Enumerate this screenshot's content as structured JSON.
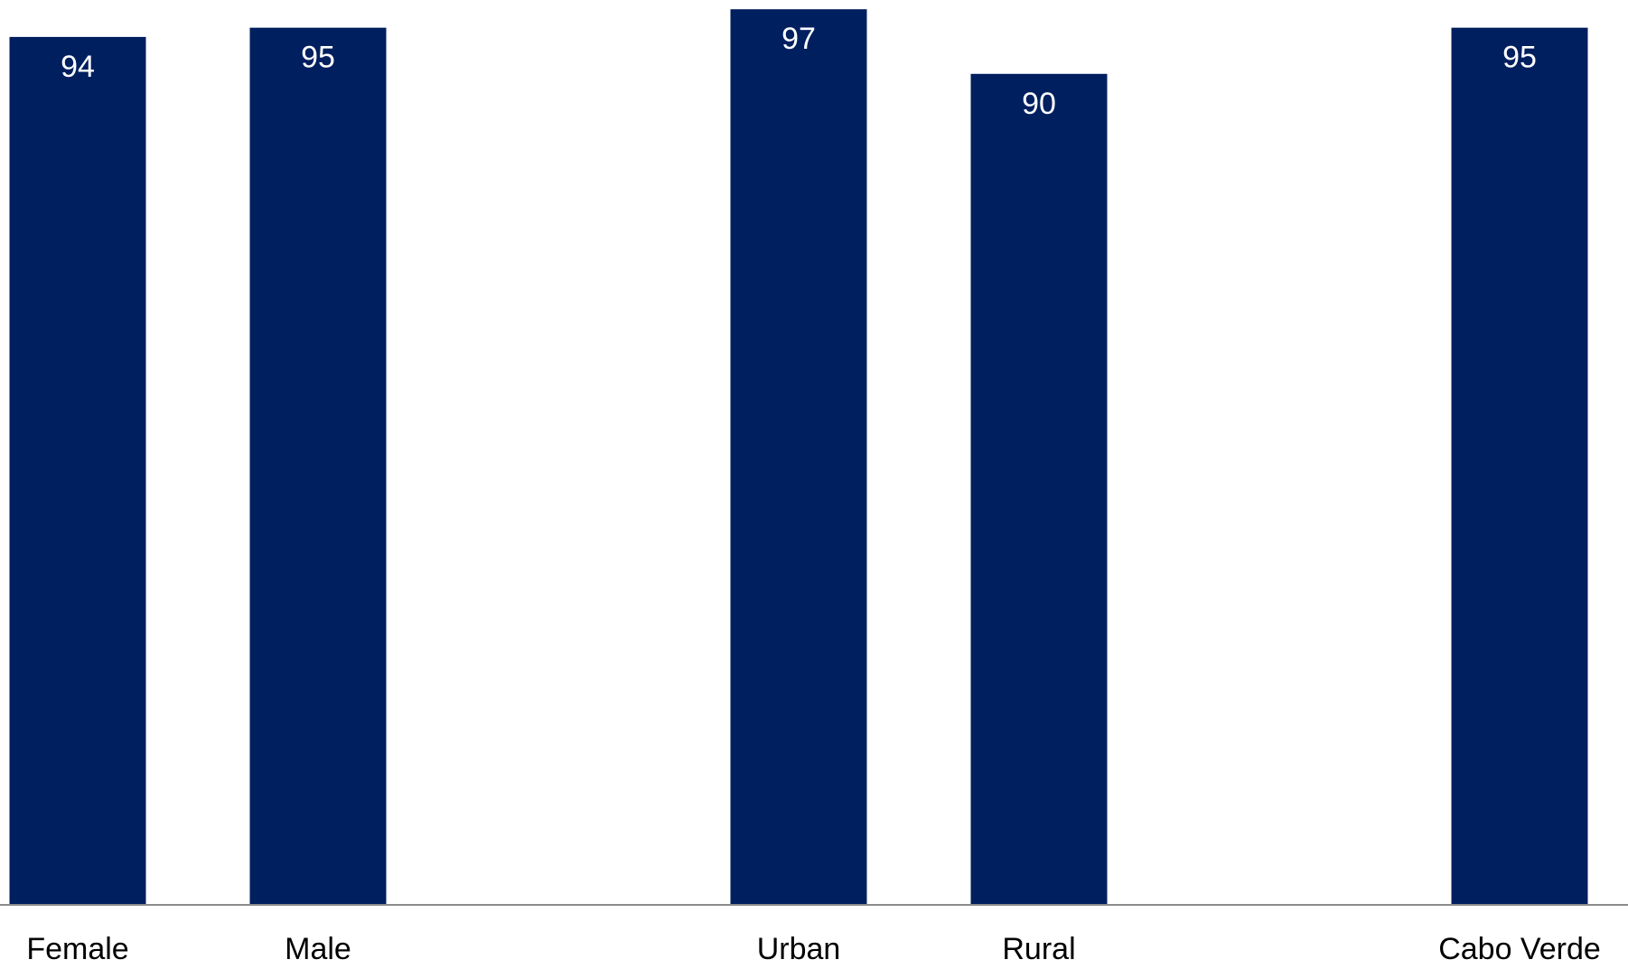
{
  "chart_data": {
    "type": "bar",
    "categories": [
      "Female",
      "Male",
      "",
      "Urban",
      "Rural",
      "",
      "Cabo Verde"
    ],
    "values": [
      94,
      95,
      null,
      97,
      90,
      null,
      95
    ],
    "data_labels": [
      "94",
      "95",
      "",
      "97",
      "90",
      "",
      "95"
    ],
    "title": "",
    "xlabel": "",
    "ylabel": "",
    "ylim": [
      0,
      98
    ],
    "grid": false,
    "legend": "none",
    "colors": {
      "bar": "#001F5F",
      "data_label": "#FFFFFF",
      "axis_line": "#8C8C8C",
      "category_label": "#000000"
    }
  }
}
